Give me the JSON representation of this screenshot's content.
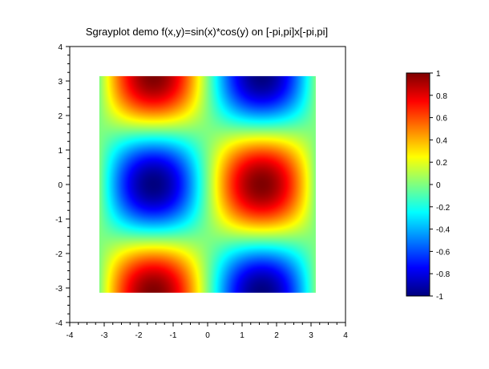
{
  "figure": {
    "title": "Sgrayplot demo f(x,y)=sin(x)*cos(y) on [-pi,pi]x[-pi,pi]"
  },
  "chart_data": {
    "type": "heatmap",
    "title": "Sgrayplot demo f(x,y)=sin(x)*cos(y) on [-pi,pi]x[-pi,pi]",
    "function": "sin(x)*cos(y)",
    "x_domain": [
      -3.1416,
      3.1416
    ],
    "y_domain": [
      -3.1416,
      3.1416
    ],
    "xlim": [
      -4,
      4
    ],
    "ylim": [
      -4,
      4
    ],
    "x_ticks": [
      "-4",
      "-3",
      "-2",
      "-1",
      "0",
      "1",
      "2",
      "3",
      "4"
    ],
    "y_ticks": [
      "4",
      "3",
      "2",
      "1",
      "0",
      "-1",
      "-2",
      "-3",
      "-4"
    ],
    "colormap": "jet",
    "colorbar": {
      "range": [
        -1,
        1
      ],
      "ticks": [
        "1",
        "0.8",
        "0.6",
        "0.4",
        "0.2",
        "0",
        "-0.2",
        "-0.4",
        "-0.6",
        "-0.8",
        "-1"
      ]
    },
    "grid": false
  }
}
